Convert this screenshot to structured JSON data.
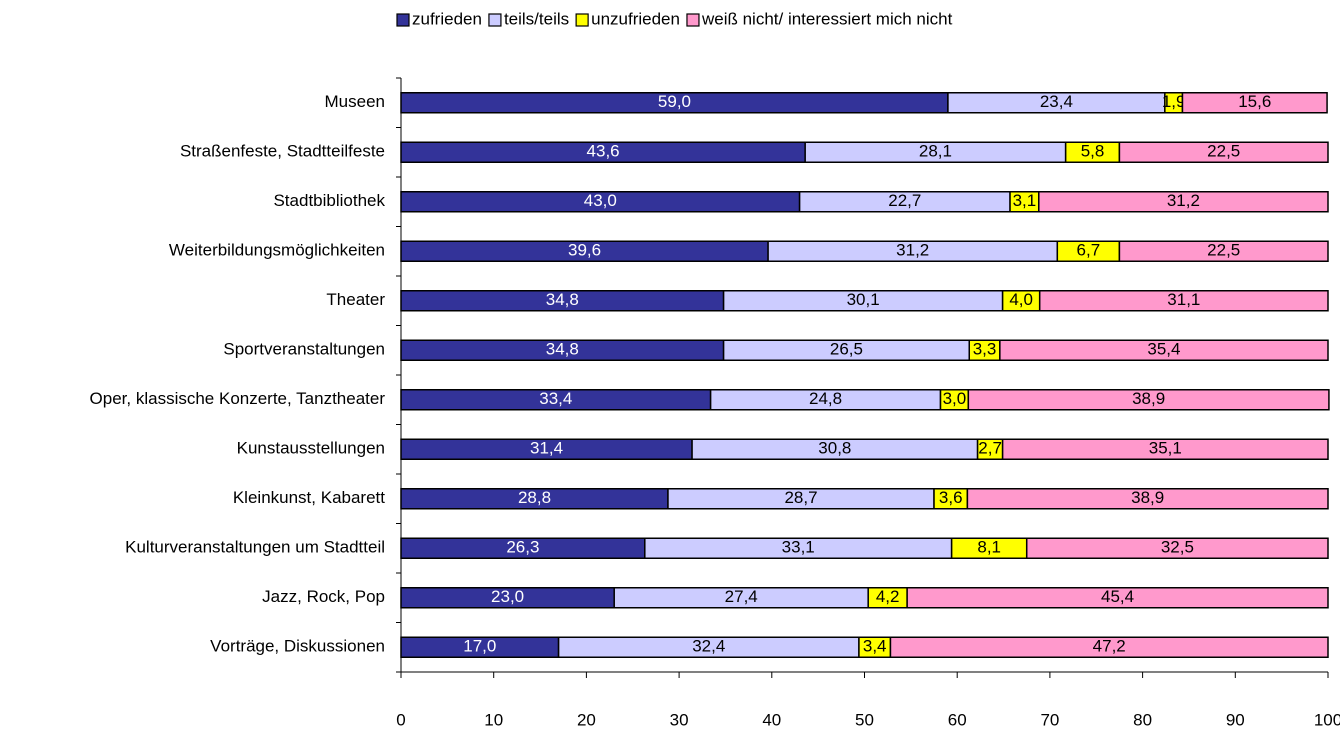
{
  "chart_data": {
    "type": "stacked-bar-horizontal",
    "categories": [
      "Museen",
      "Straßenfeste, Stadtteilfeste",
      "Stadtbibliothek",
      "Weiterbildungsmöglichkeiten",
      "Theater",
      "Sportveranstaltungen",
      "Oper, klassische Konzerte, Tanztheater",
      "Kunstausstellungen",
      "Kleinkunst, Kabarett",
      "Kulturveranstaltungen um Stadtteil",
      "Jazz, Rock, Pop",
      "Vorträge, Diskussionen"
    ],
    "series": [
      {
        "name": "zufrieden",
        "color": "#333399",
        "label_color": "#ffffff",
        "values": [
          59.0,
          43.6,
          43.0,
          39.6,
          34.8,
          34.8,
          33.4,
          31.4,
          28.8,
          26.3,
          23.0,
          17.0
        ],
        "value_labels": [
          "59,0",
          "43,6",
          "43,0",
          "39,6",
          "34,8",
          "34,8",
          "33,4",
          "31,4",
          "28,8",
          "26,3",
          "23,0",
          "17,0"
        ]
      },
      {
        "name": "teils/teils",
        "color": "#ccccff",
        "label_color": "#000000",
        "values": [
          23.4,
          28.1,
          22.7,
          31.2,
          30.1,
          26.5,
          24.8,
          30.8,
          28.7,
          33.1,
          27.4,
          32.4
        ],
        "value_labels": [
          "23,4",
          "28,1",
          "22,7",
          "31,2",
          "30,1",
          "26,5",
          "24,8",
          "30,8",
          "28,7",
          "33,1",
          "27,4",
          "32,4"
        ]
      },
      {
        "name": "unzufrieden",
        "color": "#ffff00",
        "label_color": "#000000",
        "values": [
          1.9,
          5.8,
          3.1,
          6.7,
          4.0,
          3.3,
          3.0,
          2.7,
          3.6,
          8.1,
          4.2,
          3.4
        ],
        "value_labels": [
          "1,9",
          "5,8",
          "3,1",
          "6,7",
          "4,0",
          "3,3",
          "3,0",
          "2,7",
          "3,6",
          "8,1",
          "4,2",
          "3,4"
        ]
      },
      {
        "name": "weiß nicht/ interessiert mich nicht",
        "color": "#ff99cc",
        "label_color": "#000000",
        "values": [
          15.6,
          22.5,
          31.2,
          22.5,
          31.1,
          35.4,
          38.9,
          35.1,
          38.9,
          32.5,
          45.4,
          47.2
        ],
        "value_labels": [
          "15,6",
          "22,5",
          "31,2",
          "22,5",
          "31,1",
          "35,4",
          "38,9",
          "35,1",
          "38,9",
          "32,5",
          "45,4",
          "47,2"
        ]
      }
    ],
    "xlim": [
      0,
      100
    ],
    "xticks": [
      0,
      10,
      20,
      30,
      40,
      50,
      60,
      70,
      80,
      90,
      100
    ],
    "legend": "top"
  }
}
